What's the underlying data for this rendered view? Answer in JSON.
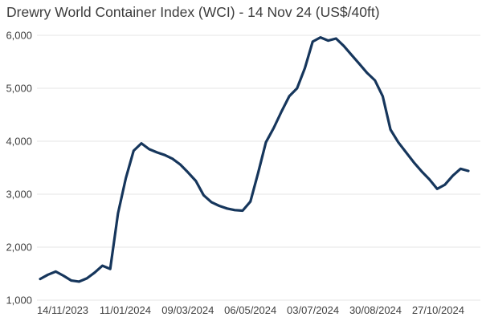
{
  "chart_data": {
    "type": "line",
    "title": "Drewry World Container Index (WCI) - 14 Nov 24 (US$/40ft)",
    "xlabel": "",
    "ylabel": "",
    "x_tick_labels": [
      "14/11/2023",
      "11/01/2024",
      "09/03/2024",
      "06/05/2024",
      "03/07/2024",
      "30/08/2024",
      "27/10/2024"
    ],
    "y_ticks": [
      1000,
      2000,
      3000,
      4000,
      5000,
      6000
    ],
    "y_tick_labels": [
      "1,000",
      "2,000",
      "3,000",
      "4,000",
      "5,000",
      "6,000"
    ],
    "ylim": [
      1000,
      6000
    ],
    "grid": "horizontal",
    "legend_position": "none",
    "series": [
      {
        "name": "WCI (US$/40ft)",
        "values": [
          1400,
          1480,
          1540,
          1460,
          1370,
          1350,
          1410,
          1520,
          1650,
          1590,
          2640,
          3300,
          3820,
          3960,
          3850,
          3790,
          3740,
          3670,
          3560,
          3410,
          3250,
          2980,
          2850,
          2780,
          2730,
          2700,
          2690,
          2860,
          3400,
          3980,
          4250,
          4560,
          4850,
          5000,
          5380,
          5880,
          5960,
          5900,
          5940,
          5800,
          5630,
          5460,
          5290,
          5150,
          4850,
          4220,
          3980,
          3790,
          3600,
          3430,
          3280,
          3100,
          3180,
          3350,
          3480,
          3440
        ]
      }
    ],
    "colors": {
      "line": "#16365c",
      "grid": "#e6e6e6",
      "title_text": "#3c3c3c",
      "tick_text": "#3f3f3f",
      "background": "#ffffff"
    }
  }
}
